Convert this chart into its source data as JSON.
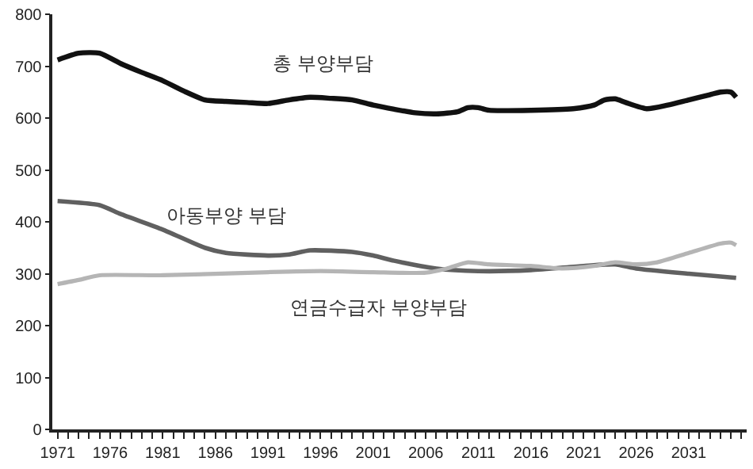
{
  "chart_data": {
    "type": "line",
    "series": [
      {
        "name": "총 부양부담",
        "color": "#111111",
        "x": [
          1971,
          1973,
          1975,
          1977,
          1979,
          1981,
          1983,
          1985,
          1987,
          1989,
          1991,
          1993,
          1995,
          1997,
          1999,
          2001,
          2003,
          2005,
          2007,
          2009,
          2010,
          2011,
          2012,
          2016,
          2020,
          2022,
          2023,
          2024,
          2025,
          2027,
          2029,
          2031,
          2033,
          2034,
          2035,
          2035.5
        ],
        "values": [
          712,
          725,
          725,
          705,
          688,
          672,
          652,
          635,
          632,
          630,
          628,
          635,
          640,
          638,
          635,
          625,
          617,
          610,
          608,
          612,
          620,
          620,
          615,
          615,
          618,
          625,
          635,
          637,
          630,
          618,
          625,
          635,
          645,
          650,
          650,
          640
        ]
      },
      {
        "name": "아동부양 부담",
        "color": "#606060",
        "x": [
          1971,
          1975,
          1977,
          1981,
          1985,
          1987,
          1991,
          1993,
          1995,
          1999,
          2001,
          2003,
          2007,
          2011,
          2016,
          2021,
          2024,
          2026,
          2031,
          2035.5
        ],
        "values": [
          440,
          432,
          415,
          385,
          350,
          340,
          335,
          337,
          345,
          342,
          335,
          325,
          310,
          305,
          307,
          315,
          318,
          310,
          300,
          292
        ]
      },
      {
        "name": "연금수급자 부양부담",
        "color": "#b5b5b5",
        "x": [
          1971,
          1973,
          1975,
          1981,
          1991,
          1996,
          2001,
          2006,
          2008,
          2010,
          2012,
          2016,
          2019,
          2022,
          2024,
          2026,
          2028,
          2031,
          2034,
          2035,
          2035.5
        ],
        "values": [
          280,
          288,
          297,
          297,
          303,
          305,
          303,
          302,
          310,
          322,
          318,
          315,
          310,
          315,
          322,
          318,
          322,
          340,
          358,
          360,
          355
        ]
      }
    ],
    "xlim": [
      1970.5,
      2036.5
    ],
    "xticks": [
      1971,
      {
        "value": 1972,
        "label": null
      },
      {
        "value": 1973,
        "label": null
      },
      {
        "value": 1974,
        "label": null
      },
      {
        "value": 1975,
        "label": null
      },
      1976,
      {
        "value": 1977,
        "label": null
      },
      {
        "value": 1978,
        "label": null
      },
      {
        "value": 1979,
        "label": null
      },
      {
        "value": 1980,
        "label": null
      },
      1981,
      {
        "value": 1982,
        "label": null
      },
      {
        "value": 1983,
        "label": null
      },
      {
        "value": 1984,
        "label": null
      },
      {
        "value": 1985,
        "label": null
      },
      1986,
      {
        "value": 1987,
        "label": null
      },
      {
        "value": 1988,
        "label": null
      },
      {
        "value": 1989,
        "label": null
      },
      {
        "value": 1990,
        "label": null
      },
      1991,
      {
        "value": 1992,
        "label": null
      },
      {
        "value": 1993,
        "label": null
      },
      {
        "value": 1994,
        "label": null
      },
      {
        "value": 1995,
        "label": null
      },
      1996,
      {
        "value": 1997,
        "label": null
      },
      {
        "value": 1998,
        "label": null
      },
      {
        "value": 1999,
        "label": null
      },
      {
        "value": 2000,
        "label": null
      },
      2001,
      {
        "value": 2002,
        "label": null
      },
      {
        "value": 2003,
        "label": null
      },
      {
        "value": 2004,
        "label": null
      },
      {
        "value": 2005,
        "label": null
      },
      2006,
      {
        "value": 2007,
        "label": null
      },
      {
        "value": 2008,
        "label": null
      },
      {
        "value": 2009,
        "label": null
      },
      {
        "value": 2010,
        "label": null
      },
      2011,
      {
        "value": 2012,
        "label": null
      },
      {
        "value": 2013,
        "label": null
      },
      {
        "value": 2014,
        "label": null
      },
      {
        "value": 2015,
        "label": null
      },
      2016,
      {
        "value": 2017,
        "label": null
      },
      {
        "value": 2018,
        "label": null
      },
      {
        "value": 2019,
        "label": null
      },
      {
        "value": 2020,
        "label": null
      },
      2021,
      {
        "value": 2022,
        "label": null
      },
      {
        "value": 2023,
        "label": null
      },
      {
        "value": 2024,
        "label": null
      },
      {
        "value": 2025,
        "label": null
      },
      2026,
      {
        "value": 2027,
        "label": null
      },
      {
        "value": 2028,
        "label": null
      },
      {
        "value": 2029,
        "label": null
      },
      {
        "value": 2030,
        "label": null
      },
      2031,
      {
        "value": 2032,
        "label": null
      },
      {
        "value": 2033,
        "label": null
      },
      {
        "value": 2034,
        "label": null
      },
      {
        "value": 2035,
        "label": null
      },
      {
        "value": 2036,
        "label": null
      }
    ],
    "ylim": [
      0,
      800
    ],
    "yticks": [
      0,
      100,
      200,
      300,
      400,
      500,
      600,
      700,
      800
    ],
    "legend": false,
    "marker": "none",
    "line_style": "solid"
  }
}
